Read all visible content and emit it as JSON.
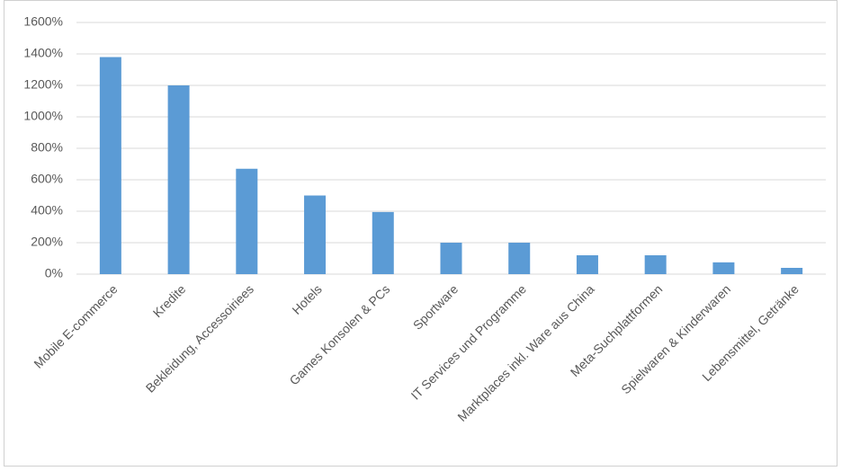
{
  "chart_data": {
    "type": "bar",
    "categories": [
      "Mobile E-commerce",
      "Kredite",
      "Bekleidung, Accessoiriees",
      "Hotels",
      "Games Konsolen & PCs",
      "Sportware",
      "IT Services und Programme",
      "Marktplaces inkl. Ware aus China",
      "Meta-Suchplattformen",
      "Spielwaren & Kinderwaren",
      "Lebensmittel, Getränke"
    ],
    "values": [
      1380,
      1200,
      670,
      500,
      395,
      200,
      200,
      120,
      120,
      75,
      40
    ],
    "color": "#5b9bd5",
    "ylim": [
      0,
      1600
    ],
    "yticks": [
      {
        "value": 0,
        "label": "0%"
      },
      {
        "value": 200,
        "label": "200%"
      },
      {
        "value": 400,
        "label": "400%"
      },
      {
        "value": 600,
        "label": "600%"
      },
      {
        "value": 800,
        "label": "800%"
      },
      {
        "value": 1000,
        "label": "1000%"
      },
      {
        "value": 1200,
        "label": "1200%"
      },
      {
        "value": 1400,
        "label": "1400%"
      },
      {
        "value": 1600,
        "label": "1600%"
      }
    ],
    "grid": true
  }
}
